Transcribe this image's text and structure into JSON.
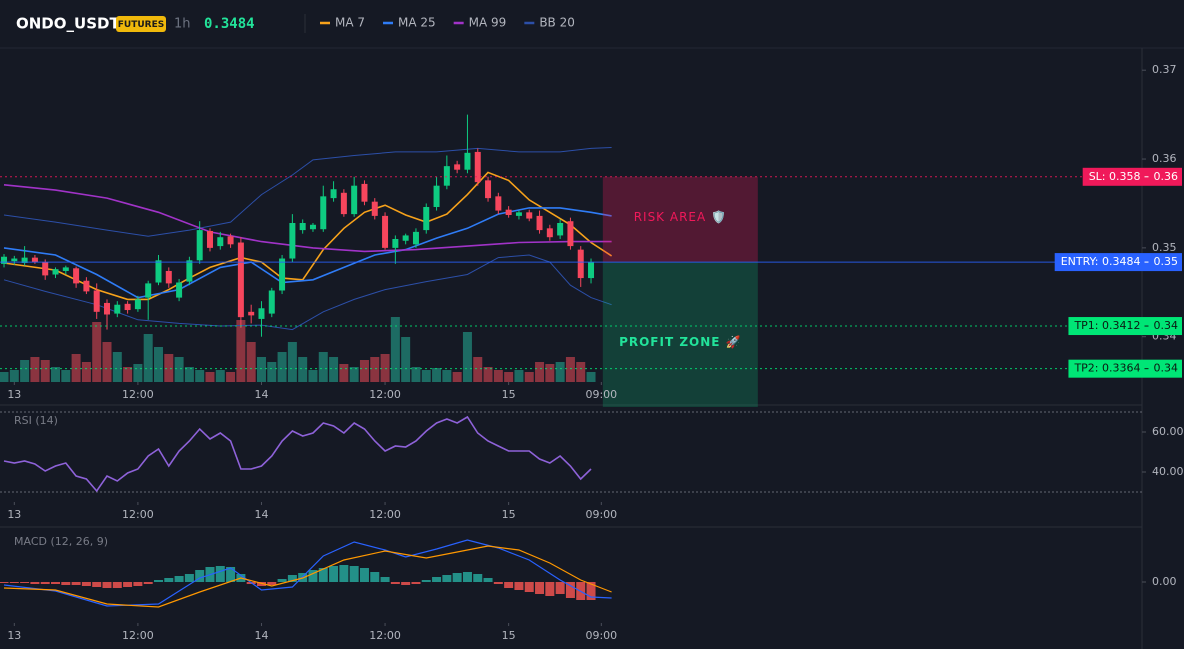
{
  "header": {
    "symbol": "ONDO_USDT",
    "badge": "FUTURES",
    "interval": "1h",
    "price": "0.3484"
  },
  "chart_data": [
    {
      "type": "candlestick",
      "xlim": [
        -0.39,
        110.5
      ],
      "xticks": [
        {
          "value": 1,
          "label": "13"
        },
        {
          "value": 13,
          "label": "12:00"
        },
        {
          "value": 25,
          "label": "14"
        },
        {
          "value": 37,
          "label": "12:00"
        },
        {
          "value": 49,
          "label": "15"
        },
        {
          "value": 58,
          "label": "09:00"
        }
      ],
      "ylim": [
        0.3349,
        0.3725
      ],
      "yticks": [
        0.37,
        0.36,
        0.35,
        0.34
      ],
      "up_color": "#0ecb81",
      "down_color": "#f6465d",
      "ohlc": [
        [
          0.3482,
          0.3493,
          0.3478,
          0.349
        ],
        [
          0.3485,
          0.3491,
          0.3481,
          0.3488
        ],
        [
          0.3483,
          0.3502,
          0.348,
          0.3489
        ],
        [
          0.3489,
          0.3492,
          0.3482,
          0.3484
        ],
        [
          0.3484,
          0.3487,
          0.3464,
          0.3469
        ],
        [
          0.347,
          0.3478,
          0.3466,
          0.3476
        ],
        [
          0.3474,
          0.348,
          0.347,
          0.3478
        ],
        [
          0.3477,
          0.3479,
          0.3455,
          0.346
        ],
        [
          0.3463,
          0.3467,
          0.3448,
          0.3451
        ],
        [
          0.3452,
          0.346,
          0.342,
          0.3428
        ],
        [
          0.3438,
          0.3442,
          0.3408,
          0.3425
        ],
        [
          0.3426,
          0.344,
          0.3422,
          0.3436
        ],
        [
          0.3437,
          0.344,
          0.3426,
          0.343
        ],
        [
          0.3431,
          0.3446,
          0.3428,
          0.3442
        ],
        [
          0.3444,
          0.3463,
          0.3419,
          0.346
        ],
        [
          0.3461,
          0.3492,
          0.3458,
          0.3486
        ],
        [
          0.3474,
          0.3478,
          0.3455,
          0.346
        ],
        [
          0.3444,
          0.3465,
          0.344,
          0.3461
        ],
        [
          0.3462,
          0.349,
          0.3458,
          0.3486
        ],
        [
          0.3486,
          0.353,
          0.3482,
          0.352
        ],
        [
          0.3519,
          0.3522,
          0.3496,
          0.35
        ],
        [
          0.3502,
          0.3518,
          0.3498,
          0.3512
        ],
        [
          0.3513,
          0.3516,
          0.35,
          0.3504
        ],
        [
          0.3506,
          0.3512,
          0.341,
          0.3422
        ],
        [
          0.3428,
          0.3436,
          0.3415,
          0.3424
        ],
        [
          0.342,
          0.344,
          0.34,
          0.3432
        ],
        [
          0.3426,
          0.3455,
          0.3422,
          0.3452
        ],
        [
          0.3452,
          0.3492,
          0.3448,
          0.3488
        ],
        [
          0.3488,
          0.3538,
          0.3484,
          0.3528
        ],
        [
          0.352,
          0.3532,
          0.3516,
          0.3528
        ],
        [
          0.3521,
          0.3528,
          0.3518,
          0.3526
        ],
        [
          0.3521,
          0.357,
          0.3518,
          0.3558
        ],
        [
          0.3556,
          0.3575,
          0.3552,
          0.3566
        ],
        [
          0.3562,
          0.3566,
          0.3535,
          0.3538
        ],
        [
          0.3538,
          0.358,
          0.3535,
          0.357
        ],
        [
          0.3572,
          0.3576,
          0.3548,
          0.3552
        ],
        [
          0.3552,
          0.3556,
          0.3532,
          0.3536
        ],
        [
          0.3536,
          0.354,
          0.3498,
          0.35
        ],
        [
          0.35,
          0.3514,
          0.3482,
          0.351
        ],
        [
          0.3508,
          0.3516,
          0.3504,
          0.3514
        ],
        [
          0.3504,
          0.3522,
          0.35,
          0.3518
        ],
        [
          0.352,
          0.355,
          0.3516,
          0.3546
        ],
        [
          0.3546,
          0.358,
          0.3542,
          0.357
        ],
        [
          0.357,
          0.3604,
          0.3566,
          0.3592
        ],
        [
          0.3594,
          0.3598,
          0.3584,
          0.3588
        ],
        [
          0.3588,
          0.365,
          0.3584,
          0.3607
        ],
        [
          0.3608,
          0.3612,
          0.357,
          0.3574
        ],
        [
          0.3576,
          0.358,
          0.3552,
          0.3556
        ],
        [
          0.3558,
          0.3562,
          0.3538,
          0.3542
        ],
        [
          0.3543,
          0.3547,
          0.3534,
          0.3537
        ],
        [
          0.3536,
          0.3542,
          0.3532,
          0.354
        ],
        [
          0.354,
          0.3543,
          0.353,
          0.3533
        ],
        [
          0.3536,
          0.3542,
          0.3516,
          0.352
        ],
        [
          0.3522,
          0.3526,
          0.3508,
          0.3512
        ],
        [
          0.3514,
          0.3532,
          0.351,
          0.3528
        ],
        [
          0.353,
          0.3534,
          0.3498,
          0.3502
        ],
        [
          0.3498,
          0.3502,
          0.3456,
          0.3466
        ],
        [
          0.3466,
          0.3488,
          0.346,
          0.3484
        ]
      ],
      "volume": {
        "ylim": [
          0,
          334
        ],
        "up_color": "#1d6b63",
        "down_color": "#8a3440",
        "values": [
          10,
          12,
          22,
          25,
          22,
          15,
          12,
          28,
          20,
          60,
          40,
          30,
          15,
          18,
          48,
          35,
          28,
          25,
          15,
          12,
          10,
          12,
          10,
          62,
          40,
          25,
          20,
          30,
          40,
          25,
          12,
          30,
          25,
          18,
          15,
          22,
          25,
          28,
          65,
          45,
          15,
          12,
          14,
          12,
          10,
          50,
          25,
          15,
          12,
          10,
          12,
          10,
          20,
          18,
          20,
          25,
          20,
          10
        ]
      },
      "series": [
        {
          "name": "MA 7",
          "color": "#f7a21b",
          "x": [
            0,
            5,
            9,
            12,
            14,
            16,
            18,
            20,
            23,
            25,
            27,
            29,
            31,
            33,
            35,
            37,
            39,
            41,
            43,
            45,
            47,
            49,
            51,
            53,
            55,
            57,
            59
          ],
          "values": [
            0.3483,
            0.3475,
            0.3453,
            0.3442,
            0.3442,
            0.3453,
            0.3466,
            0.3478,
            0.3489,
            0.3484,
            0.3466,
            0.3464,
            0.3498,
            0.3522,
            0.354,
            0.3548,
            0.3537,
            0.3529,
            0.3538,
            0.356,
            0.3585,
            0.3576,
            0.3554,
            0.354,
            0.3526,
            0.3506,
            0.3491
          ]
        },
        {
          "name": "MA 25",
          "color": "#2f7cf6",
          "x": [
            0,
            5,
            9,
            13,
            17,
            21,
            24,
            27,
            30,
            33,
            36,
            39,
            42,
            45,
            48,
            51,
            54,
            57,
            59
          ],
          "values": [
            0.35,
            0.3492,
            0.347,
            0.3444,
            0.3453,
            0.3478,
            0.3484,
            0.3461,
            0.3464,
            0.3478,
            0.3492,
            0.3498,
            0.3511,
            0.3522,
            0.3538,
            0.3545,
            0.3545,
            0.354,
            0.3536
          ]
        },
        {
          "name": "MA 99",
          "color": "#a133c8",
          "x": [
            0,
            5,
            10,
            15,
            20,
            25,
            30,
            35,
            40,
            45,
            50,
            55,
            59
          ],
          "values": [
            0.3571,
            0.3565,
            0.3556,
            0.354,
            0.3518,
            0.3507,
            0.35,
            0.3496,
            0.3498,
            0.3502,
            0.3506,
            0.3507,
            0.3507
          ]
        }
      ],
      "bands": {
        "name": "BB 20",
        "color": "#2c4fa8",
        "upper": {
          "x": [
            0,
            5,
            10,
            14,
            18,
            22,
            25,
            28,
            30,
            34,
            38,
            42,
            46,
            50,
            54,
            57,
            59
          ],
          "values": [
            0.3537,
            0.3529,
            0.352,
            0.3513,
            0.352,
            0.3529,
            0.356,
            0.3582,
            0.3599,
            0.3604,
            0.3608,
            0.3608,
            0.3612,
            0.3608,
            0.3608,
            0.3612,
            0.3613
          ]
        },
        "lower": {
          "x": [
            0,
            4,
            9,
            13,
            17,
            21,
            25,
            28,
            31,
            34,
            37,
            41,
            45,
            48,
            51,
            53,
            55,
            57,
            59
          ],
          "values": [
            0.3464,
            0.3451,
            0.3436,
            0.3419,
            0.3415,
            0.3412,
            0.3413,
            0.3408,
            0.3428,
            0.3442,
            0.3453,
            0.3462,
            0.347,
            0.3489,
            0.3492,
            0.3484,
            0.3458,
            0.3444,
            0.3436
          ]
        }
      },
      "levels": [
        {
          "value": 0.358,
          "label": "SL: 0.358",
          "axis_label": "0.36",
          "color": "#f0195a",
          "text_color": "#ffffff",
          "style": "dotted"
        },
        {
          "value": 0.3484,
          "label": "ENTRY: 0.3484",
          "axis_label": "0.35",
          "color": "#2962ff",
          "text_color": "#ffffff",
          "style": "solid"
        },
        {
          "value": 0.3412,
          "label": "TP1: 0.3412",
          "axis_label": "0.34",
          "color": "#00e676",
          "text_color": "#0b1a12",
          "style": "dotted"
        },
        {
          "value": 0.3364,
          "label": "TP2: 0.3364",
          "axis_label": "0.34",
          "color": "#00e676",
          "text_color": "#0b1a12",
          "style": "dotted"
        }
      ],
      "zones": [
        {
          "label": "RISK AREA 🛡️",
          "color": "#f0195a",
          "text_color": "#f0195a"
        },
        {
          "label": "PROFIT ZONE 🚀",
          "color": "#0ecb81",
          "text_color": "#22e39a"
        }
      ]
    },
    {
      "type": "line",
      "title": "RSI (14)",
      "color": "#8e62d9",
      "ylim": [
        25,
        73
      ],
      "yticks": [
        {
          "value": 60,
          "label": "60.00"
        },
        {
          "value": 40,
          "label": "40.00"
        }
      ],
      "levels": [
        70,
        30
      ],
      "values": [
        45.5,
        44.5,
        45.5,
        44,
        40.5,
        43,
        44.5,
        38,
        36.5,
        30.5,
        38,
        35.5,
        39.5,
        41.5,
        48,
        51.5,
        43,
        50.5,
        55.5,
        61.5,
        56.5,
        59.5,
        55.5,
        41.5,
        41.5,
        43,
        48,
        55.5,
        60.5,
        58,
        59.5,
        64.5,
        63,
        59.5,
        64.5,
        61.5,
        55.5,
        50.5,
        53,
        52.5,
        55.5,
        60.5,
        64.5,
        66.5,
        64.5,
        67.5,
        59.5,
        55.5,
        53,
        50.5,
        50.5,
        50.5,
        46.5,
        44.5,
        48,
        43,
        36.5,
        41.5
      ]
    },
    {
      "type": "macd",
      "title": "MACD (12, 26, 9)",
      "ylim": [
        -0.002,
        0.0027
      ],
      "yticks": [
        {
          "value": 0,
          "label": "0.00"
        }
      ],
      "up_color": "#26a69a",
      "down_color": "#ef5350",
      "histogram": [
        -5e-05,
        -5e-05,
        -5e-05,
        -0.0001,
        -0.0001,
        -0.0001,
        -0.00015,
        -0.00015,
        -0.0002,
        -0.00025,
        -0.0003,
        -0.0003,
        -0.00025,
        -0.0002,
        -0.0001,
        0.0001,
        0.0002,
        0.0003,
        0.0004,
        0.0006,
        0.00075,
        0.0008,
        0.00075,
        0.0004,
        -0.0001,
        -0.0002,
        -0.00015,
        0.00015,
        0.00035,
        0.00045,
        0.0006,
        0.0007,
        0.0008,
        0.00085,
        0.0008,
        0.0007,
        0.0005,
        0.00025,
        -0.0001,
        -0.00015,
        -0.0001,
        0.0001,
        0.00025,
        0.00035,
        0.00045,
        0.0005,
        0.0004,
        0.0002,
        -0.0001,
        -0.0003,
        -0.0004,
        -0.0005,
        -0.0006,
        -0.0007,
        -0.0006,
        -0.0008,
        -0.0009,
        -0.0009
      ],
      "series": [
        {
          "color": "#2962ff",
          "x": [
            0,
            5,
            10,
            15,
            19,
            22,
            25,
            28,
            31,
            34,
            37,
            39,
            42,
            45,
            48,
            51,
            54,
            57,
            59
          ],
          "values": [
            -0.00015,
            -0.00045,
            -0.0012,
            -0.0011,
            0.0002,
            0.0007,
            -0.0004,
            -0.00025,
            0.0013,
            0.002,
            0.0016,
            0.00125,
            0.00165,
            0.0021,
            0.0017,
            0.0011,
            0.0001,
            -0.00075,
            -0.0008
          ]
        },
        {
          "color": "#ff9800",
          "x": [
            0,
            5,
            10,
            15,
            19,
            23,
            26,
            29,
            33,
            37,
            41,
            44,
            47,
            50,
            53,
            56,
            59
          ],
          "values": [
            -0.0003,
            -0.0004,
            -0.0011,
            -0.00125,
            -0.0005,
            0.0002,
            -0.0002,
            0.0002,
            0.0011,
            0.00155,
            0.0012,
            0.0015,
            0.0018,
            0.0016,
            0.00095,
            0.0001,
            -0.0005
          ]
        }
      ]
    }
  ]
}
